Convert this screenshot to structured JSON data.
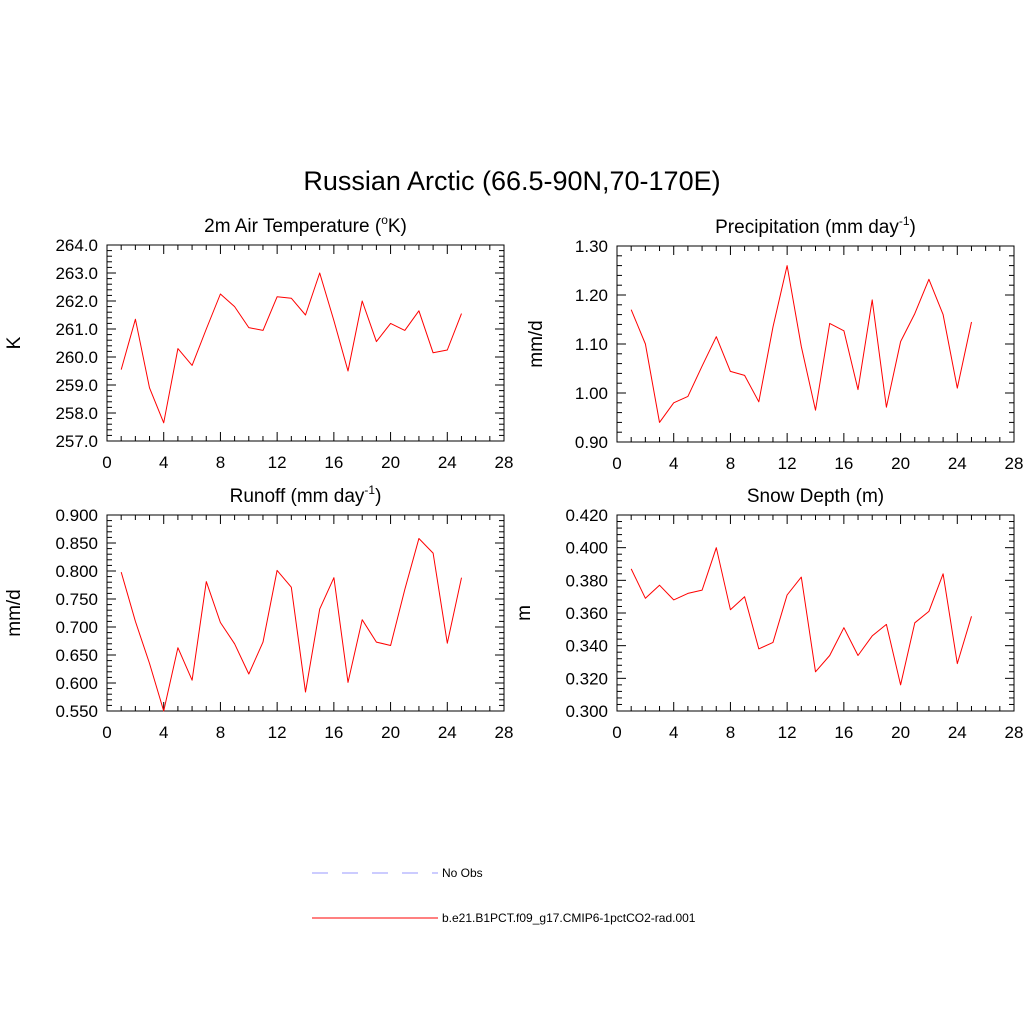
{
  "figure": {
    "title": "Russian Arctic (66.5-90N,70-170E)"
  },
  "legend": {
    "placement": "bottom-center",
    "items": [
      {
        "label": "No Obs",
        "color": "#9999ff",
        "style": "dashed"
      },
      {
        "label": "b.e21.B1PCT.f09_g17.CMIP6-1pctCO2-rad.001",
        "color": "#ff0000",
        "style": "solid"
      }
    ]
  },
  "chart_data": [
    {
      "type": "line",
      "title": "2m Air Temperature (",
      "title_sup": "o",
      "title_suffix": "K)",
      "ylabel": "K",
      "xlim": [
        0,
        28
      ],
      "ylim": [
        257.0,
        264.0
      ],
      "xticks": [
        0,
        4,
        8,
        12,
        16,
        20,
        24,
        28
      ],
      "xtick_labels": [
        "0",
        "4",
        "8",
        "12",
        "16",
        "20",
        "24",
        "28"
      ],
      "yticks": [
        257,
        258,
        259,
        260,
        261,
        262,
        263,
        264
      ],
      "ytick_labels": [
        "257.0",
        "258.0",
        "259.0",
        "260.0",
        "261.0",
        "262.0",
        "263.0",
        "264.0"
      ],
      "grid": false,
      "series": [
        {
          "color": "#ff0000",
          "x": [
            1,
            2,
            3,
            4,
            5,
            6,
            7,
            8,
            9,
            10,
            11,
            12,
            13,
            14,
            15,
            16,
            17,
            18,
            19,
            20,
            21,
            22,
            23,
            24,
            25
          ],
          "values": [
            259.55,
            261.35,
            258.9,
            257.65,
            260.3,
            259.7,
            261.0,
            262.25,
            261.8,
            261.05,
            260.95,
            262.15,
            262.1,
            261.5,
            263.0,
            261.3,
            259.5,
            262.0,
            260.55,
            261.2,
            260.95,
            261.65,
            260.15,
            260.25,
            261.55
          ]
        }
      ]
    },
    {
      "type": "line",
      "title": "Precipitation (mm day",
      "title_sup": "-1",
      "title_suffix": ")",
      "ylabel": "mm/d",
      "xlim": [
        0,
        28
      ],
      "ylim": [
        0.9,
        1.3
      ],
      "xticks": [
        0,
        4,
        8,
        12,
        16,
        20,
        24,
        28
      ],
      "xtick_labels": [
        "0",
        "4",
        "8",
        "12",
        "16",
        "20",
        "24",
        "28"
      ],
      "yticks": [
        0.9,
        1.0,
        1.1,
        1.2,
        1.3
      ],
      "ytick_labels": [
        "0.90",
        "1.00",
        "1.10",
        "1.20",
        "1.30"
      ],
      "grid": false,
      "series": [
        {
          "color": "#ff0000",
          "x": [
            1,
            2,
            3,
            4,
            5,
            6,
            7,
            8,
            9,
            10,
            11,
            12,
            13,
            14,
            15,
            16,
            17,
            18,
            19,
            20,
            21,
            22,
            23,
            24,
            25
          ],
          "values": [
            1.17,
            1.1,
            0.94,
            0.98,
            0.993,
            1.055,
            1.115,
            1.044,
            1.036,
            0.982,
            1.135,
            1.26,
            1.095,
            0.965,
            1.142,
            1.127,
            1.007,
            1.19,
            0.971,
            1.105,
            1.162,
            1.232,
            1.16,
            1.01,
            1.145
          ]
        }
      ]
    },
    {
      "type": "line",
      "title": "Runoff (mm day",
      "title_sup": "-1",
      "title_suffix": ")",
      "ylabel": "mm/d",
      "xlim": [
        0,
        28
      ],
      "ylim": [
        0.55,
        0.9
      ],
      "xticks": [
        0,
        4,
        8,
        12,
        16,
        20,
        24,
        28
      ],
      "xtick_labels": [
        "0",
        "4",
        "8",
        "12",
        "16",
        "20",
        "24",
        "28"
      ],
      "yticks": [
        0.55,
        0.6,
        0.65,
        0.7,
        0.75,
        0.8,
        0.85,
        0.9
      ],
      "ytick_labels": [
        "0.550",
        "0.600",
        "0.650",
        "0.700",
        "0.750",
        "0.800",
        "0.850",
        "0.900"
      ],
      "grid": false,
      "series": [
        {
          "color": "#ff0000",
          "x": [
            1,
            2,
            3,
            4,
            5,
            6,
            7,
            8,
            9,
            10,
            11,
            12,
            13,
            14,
            15,
            16,
            17,
            18,
            19,
            20,
            21,
            22,
            23,
            24,
            25
          ],
          "values": [
            0.798,
            0.71,
            0.635,
            0.55,
            0.663,
            0.605,
            0.781,
            0.708,
            0.67,
            0.616,
            0.673,
            0.801,
            0.771,
            0.584,
            0.732,
            0.788,
            0.601,
            0.713,
            0.673,
            0.667,
            0.767,
            0.858,
            0.832,
            0.671,
            0.788
          ]
        }
      ]
    },
    {
      "type": "line",
      "title": "Snow Depth (m)",
      "title_sup": "",
      "title_suffix": "",
      "ylabel": "m",
      "xlim": [
        0,
        28
      ],
      "ylim": [
        0.3,
        0.42
      ],
      "xticks": [
        0,
        4,
        8,
        12,
        16,
        20,
        24,
        28
      ],
      "xtick_labels": [
        "0",
        "4",
        "8",
        "12",
        "16",
        "20",
        "24",
        "28"
      ],
      "yticks": [
        0.3,
        0.32,
        0.34,
        0.36,
        0.38,
        0.4,
        0.42
      ],
      "ytick_labels": [
        "0.300",
        "0.320",
        "0.340",
        "0.360",
        "0.380",
        "0.400",
        "0.420"
      ],
      "grid": false,
      "series": [
        {
          "color": "#ff0000",
          "x": [
            1,
            2,
            3,
            4,
            5,
            6,
            7,
            8,
            9,
            10,
            11,
            12,
            13,
            14,
            15,
            16,
            17,
            18,
            19,
            20,
            21,
            22,
            23,
            24,
            25
          ],
          "values": [
            0.387,
            0.369,
            0.377,
            0.368,
            0.372,
            0.374,
            0.4,
            0.362,
            0.37,
            0.338,
            0.342,
            0.371,
            0.382,
            0.324,
            0.334,
            0.351,
            0.334,
            0.346,
            0.353,
            0.316,
            0.354,
            0.361,
            0.384,
            0.329,
            0.358
          ]
        }
      ]
    }
  ]
}
